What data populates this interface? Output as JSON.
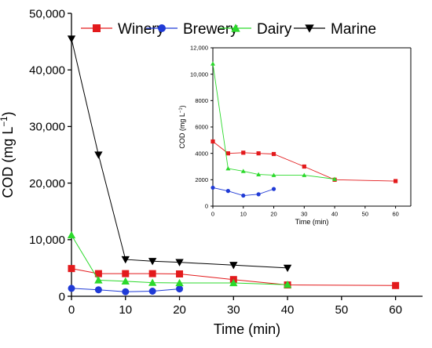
{
  "chart_data": [
    {
      "type": "line",
      "role": "main",
      "xlabel": "Time (min)",
      "ylabel": "COD (mg L",
      "ylabel_sup": "−1",
      "ylabel_close": ")",
      "xlim": [
        0,
        65
      ],
      "ylim": [
        0,
        50000
      ],
      "xticks": [
        0,
        10,
        20,
        30,
        40,
        50,
        60
      ],
      "xtick_labels": [
        "0",
        "10",
        "20",
        "30",
        "40",
        "50",
        "60"
      ],
      "yticks": [
        0,
        10000,
        20000,
        30000,
        40000,
        50000
      ],
      "ytick_labels": [
        "0",
        "10,000",
        "20,000",
        "30,000",
        "40,000",
        "50,000"
      ],
      "legend_position": "top",
      "series": [
        {
          "name": "Winery",
          "color": "#e31a1c",
          "marker": "square",
          "x": [
            0,
            5,
            10,
            15,
            20,
            30,
            40,
            60
          ],
          "y": [
            4900,
            4000,
            4000,
            4000,
            3950,
            2950,
            2000,
            1900
          ]
        },
        {
          "name": "Brewery",
          "color": "#1f3ad6",
          "marker": "circle",
          "x": [
            0,
            5,
            10,
            15,
            20
          ],
          "y": [
            1400,
            1150,
            800,
            900,
            1300
          ]
        },
        {
          "name": "Dairy",
          "color": "#2bd92b",
          "marker": "triangle-up",
          "x": [
            0,
            5,
            10,
            15,
            20,
            30,
            40
          ],
          "y": [
            10800,
            2850,
            2650,
            2400,
            2350,
            2350,
            2050
          ]
        },
        {
          "name": "Marine",
          "color": "#000000",
          "marker": "triangle-down",
          "x": [
            0,
            5,
            10,
            15,
            20,
            30,
            40
          ],
          "y": [
            45500,
            25000,
            6500,
            6200,
            6000,
            5500,
            5000
          ]
        }
      ]
    },
    {
      "type": "line",
      "role": "inset",
      "xlabel": "Time (min)",
      "ylabel": "COD (mg L",
      "ylabel_sup": "−1",
      "ylabel_close": ")",
      "xlim": [
        0,
        65
      ],
      "ylim": [
        0,
        12000
      ],
      "xticks": [
        0,
        10,
        20,
        30,
        40,
        50,
        60
      ],
      "xtick_labels": [
        "0",
        "10",
        "20",
        "30",
        "40",
        "50",
        "60"
      ],
      "yticks": [
        0,
        2000,
        4000,
        6000,
        8000,
        10000,
        12000
      ],
      "ytick_labels": [
        "0",
        "2000",
        "4000",
        "6000",
        "8000",
        "10,000",
        "12,000"
      ],
      "series": [
        {
          "name": "Winery",
          "color": "#e31a1c",
          "marker": "square",
          "x": [
            0,
            5,
            10,
            15,
            20,
            30,
            40,
            60
          ],
          "y": [
            4900,
            4000,
            4050,
            4000,
            3950,
            3000,
            2000,
            1900
          ]
        },
        {
          "name": "Brewery",
          "color": "#1f3ad6",
          "marker": "circle",
          "x": [
            0,
            5,
            10,
            15,
            20
          ],
          "y": [
            1400,
            1150,
            800,
            900,
            1300
          ]
        },
        {
          "name": "Dairy",
          "color": "#2bd92b",
          "marker": "triangle-up",
          "x": [
            0,
            5,
            10,
            15,
            20,
            30,
            40
          ],
          "y": [
            10800,
            2850,
            2650,
            2400,
            2350,
            2350,
            2050
          ]
        }
      ]
    }
  ]
}
